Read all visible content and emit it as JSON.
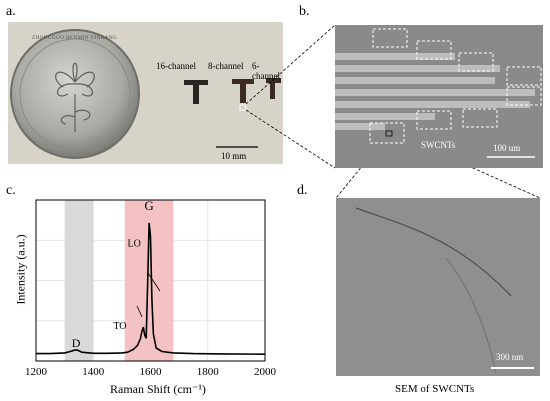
{
  "panels": {
    "a": {
      "label": "a.",
      "channels": [
        "16-channel",
        "8-channel",
        "6-channel"
      ],
      "scale_bar": "10 mm",
      "coin_text": "ZHONGGUO RENMIN YINHANG"
    },
    "b": {
      "label": "b.",
      "annotation": "SWCNTs",
      "scale_bar": "100 um"
    },
    "c": {
      "label": "c."
    },
    "d": {
      "label": "d.",
      "scale_bar": "300 nm",
      "caption": "SEM of SWCNTs"
    }
  },
  "chart_data": {
    "type": "line",
    "xlabel": "Raman Shift (cm⁻¹)",
    "ylabel": "Intensity (a.u.)",
    "xlim": [
      1200,
      2000
    ],
    "x_ticks": [
      "1200",
      "1400",
      "1600",
      "1800",
      "2000"
    ],
    "y_ticks_shown": false,
    "grid": true,
    "shaded_regions": [
      {
        "color": "#d9d9d9",
        "range": [
          1300,
          1400
        ]
      },
      {
        "color": "#f4c2c2",
        "range": [
          1510,
          1680
        ]
      }
    ],
    "peak_labels": [
      {
        "text": "D",
        "x": 1340,
        "y": 0.03
      },
      {
        "text": "G",
        "x": 1595,
        "y": 1.0
      },
      {
        "text": "LO",
        "x": 1592,
        "y": 0.78
      },
      {
        "text": "TO",
        "x": 1570,
        "y": 0.2
      }
    ],
    "series": [
      {
        "x": [
          1200,
          1250,
          1300,
          1320,
          1335,
          1345,
          1360,
          1400,
          1450,
          1500,
          1520,
          1540,
          1555,
          1565,
          1570,
          1575,
          1580,
          1585,
          1590,
          1595,
          1600,
          1605,
          1610,
          1620,
          1640,
          1680,
          1750,
          1850,
          2000
        ],
        "values": [
          0.01,
          0.01,
          0.015,
          0.025,
          0.035,
          0.035,
          0.02,
          0.012,
          0.012,
          0.015,
          0.02,
          0.04,
          0.07,
          0.12,
          0.17,
          0.2,
          0.14,
          0.12,
          0.5,
          0.95,
          0.85,
          0.4,
          0.15,
          0.05,
          0.025,
          0.015,
          0.01,
          0.008,
          0.006
        ]
      }
    ]
  }
}
